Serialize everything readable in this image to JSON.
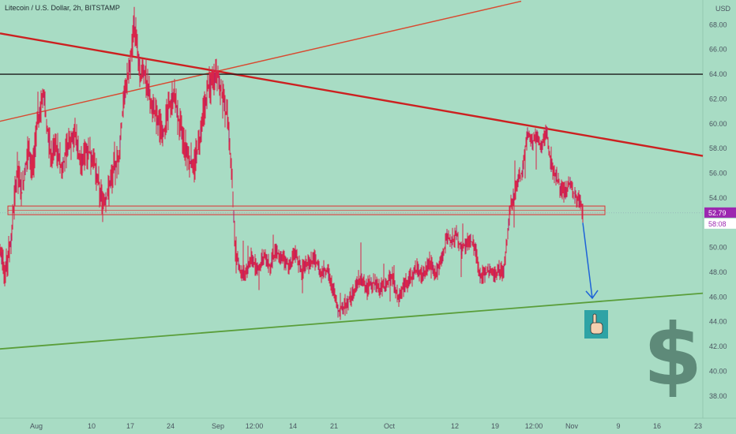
{
  "header": {
    "title": "Litecoin / U.S. Dollar, 2h, BITSTAMP"
  },
  "chart_data": {
    "type": "line",
    "title": "Litecoin / U.S. Dollar, 2h, BITSTAMP",
    "currency_label": "USD",
    "ylim": [
      36.2,
      70.0
    ],
    "y_ticks": [
      "38.00",
      "40.00",
      "42.00",
      "44.00",
      "46.00",
      "48.00",
      "50.00",
      "52.00",
      "54.00",
      "56.00",
      "58.00",
      "60.00",
      "62.00",
      "64.00",
      "66.00",
      "68.00"
    ],
    "x_ticks": [
      "Aug",
      "10",
      "17",
      "24",
      "Sep",
      "12:00",
      "14",
      "21",
      "Oct",
      "12",
      "19",
      "12:00",
      "Nov",
      "9",
      "16",
      "23"
    ],
    "price_tag": {
      "value": "52.79",
      "countdown": "58:08",
      "color": "#9c27b0"
    },
    "price_path_hint": [
      [
        0,
        49.5
      ],
      [
        7,
        48.2
      ],
      [
        14,
        50.5
      ],
      [
        18,
        53.8
      ],
      [
        22,
        56.2
      ],
      [
        28,
        54.4
      ],
      [
        35,
        57.8
      ],
      [
        42,
        56.5
      ],
      [
        48,
        60.2
      ],
      [
        55,
        62.5
      ],
      [
        60,
        59.8
      ],
      [
        65,
        57.1
      ],
      [
        70,
        58.6
      ],
      [
        78,
        56.4
      ],
      [
        86,
        58.0
      ],
      [
        95,
        59.3
      ],
      [
        102,
        56.8
      ],
      [
        110,
        57.9
      ],
      [
        118,
        57.2
      ],
      [
        125,
        55.1
      ],
      [
        130,
        53.6
      ],
      [
        135,
        54.0
      ],
      [
        142,
        55.8
      ],
      [
        150,
        57.2
      ],
      [
        155,
        60.6
      ],
      [
        160,
        63.3
      ],
      [
        165,
        65.0
      ],
      [
        170,
        68.1
      ],
      [
        174,
        66.5
      ],
      [
        178,
        63.8
      ],
      [
        183,
        64.3
      ],
      [
        188,
        62.7
      ],
      [
        194,
        61.4
      ],
      [
        200,
        60.0
      ],
      [
        207,
        59.3
      ],
      [
        213,
        61.0
      ],
      [
        220,
        62.6
      ],
      [
        226,
        60.2
      ],
      [
        233,
        58.5
      ],
      [
        240,
        57.0
      ],
      [
        246,
        56.8
      ],
      [
        252,
        58.3
      ],
      [
        258,
        61.0
      ],
      [
        264,
        63.0
      ],
      [
        270,
        63.4
      ],
      [
        276,
        64.1
      ],
      [
        282,
        62.0
      ],
      [
        288,
        60.5
      ],
      [
        293,
        56.8
      ],
      [
        296,
        52.5
      ],
      [
        299,
        49.4
      ],
      [
        304,
        48.2
      ],
      [
        310,
        47.6
      ],
      [
        318,
        49.1
      ],
      [
        326,
        48.3
      ],
      [
        334,
        49.3
      ],
      [
        342,
        48.6
      ],
      [
        350,
        49.8
      ],
      [
        358,
        49.0
      ],
      [
        366,
        48.5
      ],
      [
        374,
        49.4
      ],
      [
        382,
        48.2
      ],
      [
        390,
        48.6
      ],
      [
        398,
        49.1
      ],
      [
        406,
        48.0
      ],
      [
        414,
        48.2
      ],
      [
        422,
        46.6
      ],
      [
        428,
        44.9
      ],
      [
        434,
        45.1
      ],
      [
        440,
        45.6
      ],
      [
        448,
        46.4
      ],
      [
        456,
        47.6
      ],
      [
        464,
        46.8
      ],
      [
        472,
        47.2
      ],
      [
        480,
        46.6
      ],
      [
        488,
        46.9
      ],
      [
        496,
        47.8
      ],
      [
        504,
        45.8
      ],
      [
        512,
        46.9
      ],
      [
        520,
        47.5
      ],
      [
        528,
        48.3
      ],
      [
        536,
        47.8
      ],
      [
        544,
        48.8
      ],
      [
        552,
        47.9
      ],
      [
        560,
        49.2
      ],
      [
        566,
        50.9
      ],
      [
        572,
        50.4
      ],
      [
        578,
        51.1
      ],
      [
        584,
        49.9
      ],
      [
        590,
        50.2
      ],
      [
        596,
        50.6
      ],
      [
        602,
        49.9
      ],
      [
        608,
        47.6
      ],
      [
        614,
        47.8
      ],
      [
        620,
        48.2
      ],
      [
        626,
        47.7
      ],
      [
        632,
        48.2
      ],
      [
        638,
        48.1
      ],
      [
        642,
        50.4
      ],
      [
        646,
        53.3
      ],
      [
        650,
        54.1
      ],
      [
        656,
        55.4
      ],
      [
        662,
        56.3
      ],
      [
        668,
        59.2
      ],
      [
        674,
        58.4
      ],
      [
        680,
        59.0
      ],
      [
        686,
        58.1
      ],
      [
        692,
        59.3
      ],
      [
        698,
        56.6
      ],
      [
        704,
        55.8
      ],
      [
        710,
        54.7
      ],
      [
        716,
        54.4
      ],
      [
        722,
        55.2
      ],
      [
        728,
        54.2
      ],
      [
        734,
        53.8
      ],
      [
        738,
        52.79
      ]
    ]
  },
  "annotations": {
    "support_box": {
      "low": 52.65,
      "high": 53.35
    },
    "resistance_level": 64.0,
    "arrow_target": 45.9,
    "hand_icon": "pointing-hand-icon",
    "dollar_sign": "$",
    "colors": {
      "candles": "#d8254a",
      "trend_down": "#cc2020",
      "trend_up_thin": "#d84a30",
      "support_line": "#5a9e3a",
      "level_line": "#1a1a1a",
      "arrow": "#1e63d8",
      "box": "#d33",
      "dollar": "#5e8a79"
    }
  }
}
